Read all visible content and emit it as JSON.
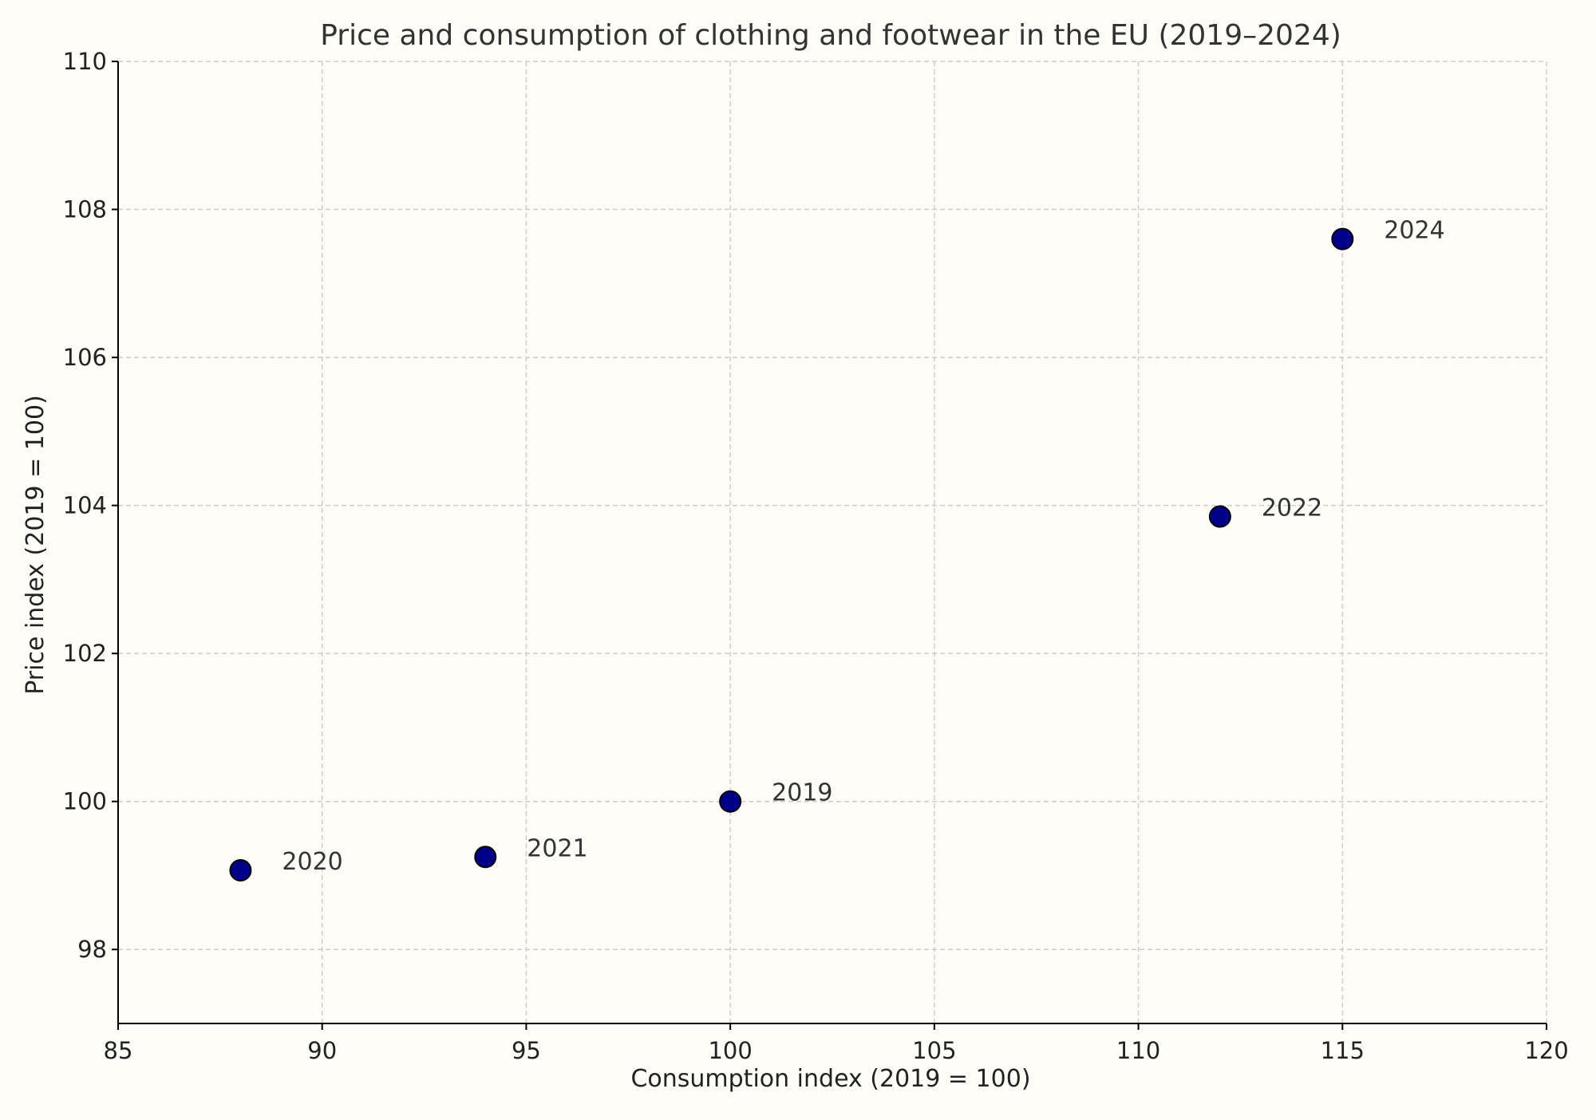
{
  "chart_data": {
    "type": "scatter",
    "title": "Price and consumption of clothing and footwear in the EU (2019–2024)",
    "xlabel": "Consumption index (2019 = 100)",
    "ylabel": "Price index (2019 = 100)",
    "xlim": [
      85,
      120
    ],
    "ylim": [
      97,
      110
    ],
    "xticks": [
      85,
      90,
      95,
      100,
      105,
      110,
      115,
      120
    ],
    "yticks": [
      98,
      100,
      102,
      104,
      106,
      108,
      110
    ],
    "grid": true,
    "points": [
      {
        "label": "2020",
        "x": 88,
        "y": 99.07
      },
      {
        "label": "2021",
        "x": 94,
        "y": 99.25
      },
      {
        "label": "2019",
        "x": 100,
        "y": 100
      },
      {
        "label": "2022",
        "x": 112,
        "y": 103.85
      },
      {
        "label": "2024",
        "x": 115,
        "y": 107.6
      }
    ],
    "colors": {
      "background": "#fffdf7",
      "marker_fill": "#00008b",
      "marker_edge": "#000000",
      "grid": "#cccccc",
      "text": "#333333",
      "axis": "#000000"
    }
  }
}
